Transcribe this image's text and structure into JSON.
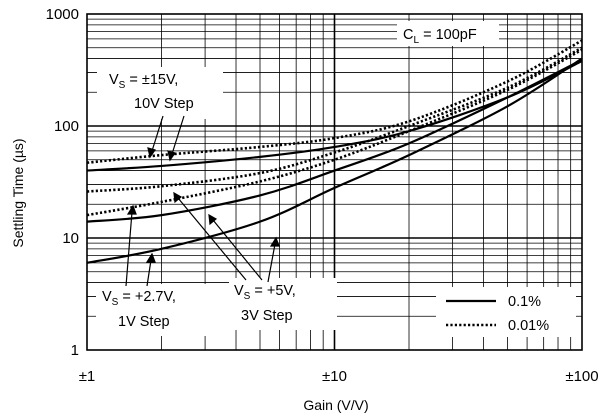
{
  "chart_data": {
    "type": "line",
    "xlabel": "Gain (V/V)",
    "ylabel": "Settling Time (µs)",
    "xscale": "log",
    "yscale": "log",
    "xlim": [
      1,
      100
    ],
    "ylim": [
      1,
      1000
    ],
    "x_tick_labels": [
      "±1",
      "±10",
      "±100"
    ],
    "y_tick_labels": [
      "1",
      "10",
      "100",
      "1000"
    ],
    "grid": true,
    "load_annotation": {
      "main": "C",
      "sub": "L",
      "rest": " = 100pF"
    },
    "legend": {
      "position": "bottom-right",
      "entries": [
        {
          "label": "0.1%",
          "style": "solid"
        },
        {
          "label": "0.01%",
          "style": "dotted"
        }
      ]
    },
    "annotations": [
      {
        "lines": [
          {
            "main": "V",
            "sub": "S",
            "rest": " = ±15V,"
          },
          {
            "main": "10V Step"
          }
        ],
        "series_group": "Vs=±15V"
      },
      {
        "lines": [
          {
            "main": "V",
            "sub": "S",
            "rest": " = +2.7V,"
          },
          {
            "main": "1V Step"
          }
        ],
        "series_group": "Vs=+2.7V"
      },
      {
        "lines": [
          {
            "main": "V",
            "sub": "S",
            "rest": " = +5V,"
          },
          {
            "main": "3V Step"
          }
        ],
        "series_group": "Vs=+5V"
      }
    ],
    "series": [
      {
        "group": "Vs=±15V",
        "style": "solid",
        "x": [
          1,
          2,
          5,
          10,
          20,
          50,
          100
        ],
        "y": [
          40,
          44,
          53,
          65,
          90,
          180,
          380
        ]
      },
      {
        "group": "Vs=±15V",
        "style": "dotted",
        "x": [
          1,
          2,
          5,
          10,
          20,
          50,
          100
        ],
        "y": [
          47,
          55,
          65,
          78,
          110,
          250,
          580
        ]
      },
      {
        "group": "Vs=+5V",
        "style": "solid",
        "x": [
          1,
          2,
          5,
          10,
          20,
          50,
          100
        ],
        "y": [
          14,
          16,
          24,
          40,
          70,
          180,
          390
        ]
      },
      {
        "group": "Vs=+5V",
        "style": "dotted",
        "x": [
          1,
          2,
          5,
          10,
          20,
          50,
          100
        ],
        "y": [
          16,
          21,
          32,
          50,
          90,
          210,
          480
        ]
      },
      {
        "group": "Vs=+2.7V",
        "style": "solid",
        "x": [
          1,
          2,
          5,
          10,
          20,
          50,
          100
        ],
        "y": [
          6,
          8,
          14,
          28,
          55,
          150,
          400
        ]
      },
      {
        "group": "Vs=+5V",
        "style": "dotted",
        "x": [
          1,
          2,
          5,
          10,
          20,
          50,
          100
        ],
        "y": [
          26,
          29,
          38,
          58,
          100,
          220,
          500
        ]
      }
    ]
  }
}
